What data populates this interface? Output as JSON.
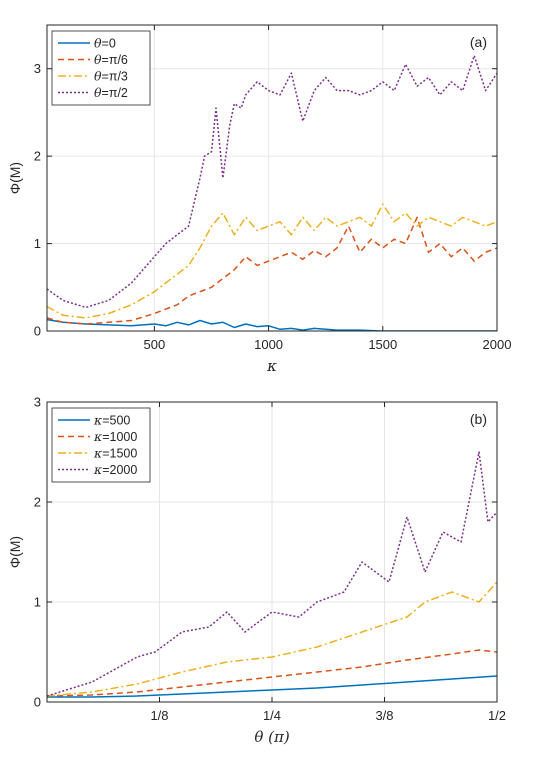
{
  "chart_data": [
    {
      "type": "line",
      "panel_label": "(a)",
      "xlabel": "κ",
      "ylabel": "Φ(M)",
      "xlim": [
        30,
        2000
      ],
      "ylim": [
        0,
        3.5
      ],
      "xticks": [
        "500",
        "1000",
        "1500",
        "2000"
      ],
      "xtick_values": [
        500,
        1000,
        1500,
        2000
      ],
      "yticks": [
        "0",
        "1",
        "2",
        "3"
      ],
      "ytick_values": [
        0,
        1,
        2,
        3
      ],
      "grid": true,
      "legend_position": "top-left",
      "series": [
        {
          "name_var": "θ",
          "name_val": "=0",
          "color": "#0072BD",
          "dash": "",
          "x": [
            30,
            100,
            200,
            300,
            400,
            500,
            550,
            600,
            650,
            700,
            750,
            800,
            850,
            900,
            950,
            1000,
            1050,
            1100,
            1150,
            1200,
            1300,
            1400,
            1500,
            1600,
            1700,
            1800,
            1900,
            2000
          ],
          "y": [
            0.13,
            0.1,
            0.08,
            0.07,
            0.06,
            0.08,
            0.06,
            0.1,
            0.07,
            0.12,
            0.08,
            0.1,
            0.04,
            0.08,
            0.05,
            0.06,
            0.02,
            0.03,
            0.01,
            0.03,
            0.01,
            0.01,
            0.0,
            0.0,
            0.0,
            0.0,
            0.0,
            0.0
          ]
        },
        {
          "name_var": "θ",
          "name_val": "=π/6",
          "color": "#D95319",
          "dash": "6,4",
          "x": [
            30,
            100,
            200,
            300,
            400,
            500,
            550,
            600,
            650,
            700,
            750,
            800,
            850,
            900,
            950,
            1000,
            1050,
            1100,
            1150,
            1200,
            1250,
            1300,
            1350,
            1400,
            1450,
            1500,
            1550,
            1600,
            1650,
            1700,
            1750,
            1800,
            1850,
            1900,
            1950,
            2000
          ],
          "y": [
            0.15,
            0.1,
            0.08,
            0.1,
            0.12,
            0.2,
            0.25,
            0.3,
            0.4,
            0.45,
            0.5,
            0.6,
            0.7,
            0.85,
            0.75,
            0.8,
            0.85,
            0.9,
            0.82,
            0.92,
            0.85,
            0.95,
            1.2,
            0.9,
            1.05,
            0.95,
            1.05,
            1.0,
            1.3,
            0.9,
            1.0,
            0.85,
            0.95,
            0.8,
            0.9,
            0.95
          ]
        },
        {
          "name_var": "θ",
          "name_val": "=π/3",
          "color": "#EDB120",
          "dash": "8,3,2,3",
          "x": [
            30,
            100,
            200,
            300,
            400,
            500,
            550,
            600,
            650,
            700,
            750,
            800,
            850,
            900,
            950,
            1000,
            1050,
            1100,
            1150,
            1200,
            1250,
            1300,
            1350,
            1400,
            1450,
            1500,
            1550,
            1600,
            1650,
            1700,
            1750,
            1800,
            1850,
            1900,
            1950,
            2000
          ],
          "y": [
            0.28,
            0.18,
            0.15,
            0.2,
            0.3,
            0.45,
            0.55,
            0.65,
            0.75,
            0.95,
            1.2,
            1.35,
            1.1,
            1.3,
            1.15,
            1.2,
            1.25,
            1.1,
            1.3,
            1.15,
            1.3,
            1.2,
            1.25,
            1.3,
            1.2,
            1.45,
            1.25,
            1.35,
            1.2,
            1.3,
            1.25,
            1.2,
            1.3,
            1.25,
            1.2,
            1.25
          ]
        },
        {
          "name_var": "θ",
          "name_val": "=π/2",
          "color": "#7E2F8E",
          "dash": "2,2",
          "x": [
            30,
            100,
            200,
            300,
            400,
            450,
            500,
            550,
            600,
            650,
            700,
            720,
            750,
            770,
            800,
            830,
            850,
            880,
            900,
            950,
            1000,
            1050,
            1100,
            1150,
            1200,
            1250,
            1300,
            1350,
            1400,
            1450,
            1500,
            1550,
            1600,
            1650,
            1700,
            1750,
            1800,
            1850,
            1900,
            1950,
            2000
          ],
          "y": [
            0.48,
            0.35,
            0.27,
            0.35,
            0.55,
            0.7,
            0.85,
            1.0,
            1.1,
            1.2,
            1.75,
            2.0,
            2.05,
            2.55,
            1.75,
            2.35,
            2.6,
            2.55,
            2.7,
            2.85,
            2.75,
            2.7,
            2.95,
            2.4,
            2.75,
            2.9,
            2.75,
            2.75,
            2.7,
            2.75,
            2.85,
            2.75,
            3.05,
            2.8,
            2.9,
            2.7,
            2.85,
            2.75,
            3.15,
            2.75,
            2.95
          ]
        }
      ]
    },
    {
      "type": "line",
      "panel_label": "(b)",
      "xlabel": "θ (π)",
      "ylabel": "Φ(M)",
      "xlim": [
        0,
        0.5
      ],
      "ylim": [
        0,
        3
      ],
      "xticks": [
        "1/8",
        "1/4",
        "3/8",
        "1/2"
      ],
      "xtick_values": [
        0.125,
        0.25,
        0.375,
        0.5
      ],
      "yticks": [
        "0",
        "1",
        "2",
        "3"
      ],
      "ytick_values": [
        0,
        1,
        2,
        3
      ],
      "grid": true,
      "legend_position": "top-left",
      "series": [
        {
          "name_var": "κ",
          "name_val": "=500",
          "color": "#0072BD",
          "dash": "",
          "x": [
            0,
            0.05,
            0.1,
            0.15,
            0.2,
            0.25,
            0.3,
            0.35,
            0.4,
            0.45,
            0.5
          ],
          "y": [
            0.05,
            0.05,
            0.06,
            0.08,
            0.1,
            0.12,
            0.14,
            0.17,
            0.2,
            0.23,
            0.26
          ]
        },
        {
          "name_var": "κ",
          "name_val": "=1000",
          "color": "#D95319",
          "dash": "6,4",
          "x": [
            0,
            0.05,
            0.1,
            0.15,
            0.2,
            0.25,
            0.3,
            0.35,
            0.4,
            0.45,
            0.48,
            0.5
          ],
          "y": [
            0.06,
            0.07,
            0.1,
            0.15,
            0.2,
            0.25,
            0.3,
            0.35,
            0.42,
            0.48,
            0.52,
            0.5
          ]
        },
        {
          "name_var": "κ",
          "name_val": "=1500",
          "color": "#EDB120",
          "dash": "8,3,2,3",
          "x": [
            0,
            0.05,
            0.1,
            0.15,
            0.2,
            0.25,
            0.3,
            0.35,
            0.4,
            0.42,
            0.45,
            0.48,
            0.5
          ],
          "y": [
            0.06,
            0.1,
            0.18,
            0.3,
            0.4,
            0.45,
            0.55,
            0.7,
            0.85,
            1.0,
            1.1,
            1.0,
            1.2
          ]
        },
        {
          "name_var": "κ",
          "name_val": "=2000",
          "color": "#7E2F8E",
          "dash": "2,2",
          "x": [
            0,
            0.05,
            0.08,
            0.1,
            0.12,
            0.15,
            0.18,
            0.2,
            0.22,
            0.25,
            0.28,
            0.3,
            0.33,
            0.35,
            0.38,
            0.4,
            0.42,
            0.44,
            0.46,
            0.48,
            0.49,
            0.5
          ],
          "y": [
            0.06,
            0.2,
            0.35,
            0.45,
            0.5,
            0.7,
            0.75,
            0.9,
            0.7,
            0.9,
            0.85,
            1.0,
            1.1,
            1.4,
            1.2,
            1.85,
            1.3,
            1.7,
            1.6,
            2.5,
            1.8,
            1.9
          ]
        }
      ]
    }
  ]
}
